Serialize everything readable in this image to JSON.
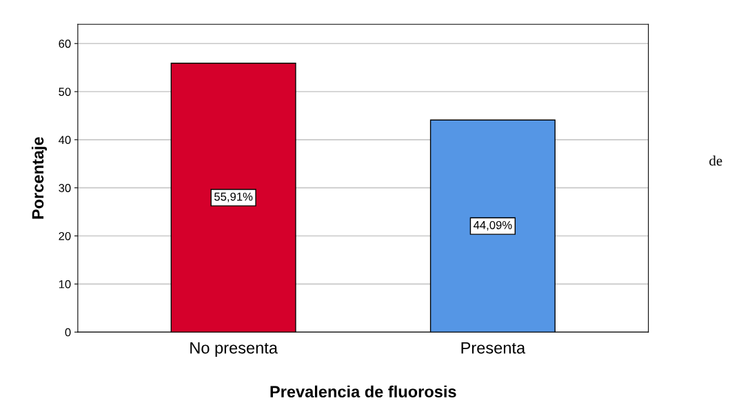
{
  "chart_data": {
    "type": "bar",
    "xlabel": "Prevalencia de fluorosis",
    "ylabel": "Porcentaje",
    "categories": [
      "No presenta",
      "Presenta"
    ],
    "values": [
      55.91,
      44.09
    ],
    "colors": [
      "#d5002b",
      "#5596e5"
    ],
    "value_labels": [
      "55,91%",
      "44,09%"
    ],
    "ylim": [
      0,
      64
    ],
    "yticks": [
      0,
      10,
      20,
      30,
      40,
      50,
      60
    ],
    "grid": "y",
    "annotations": [
      "de"
    ]
  }
}
